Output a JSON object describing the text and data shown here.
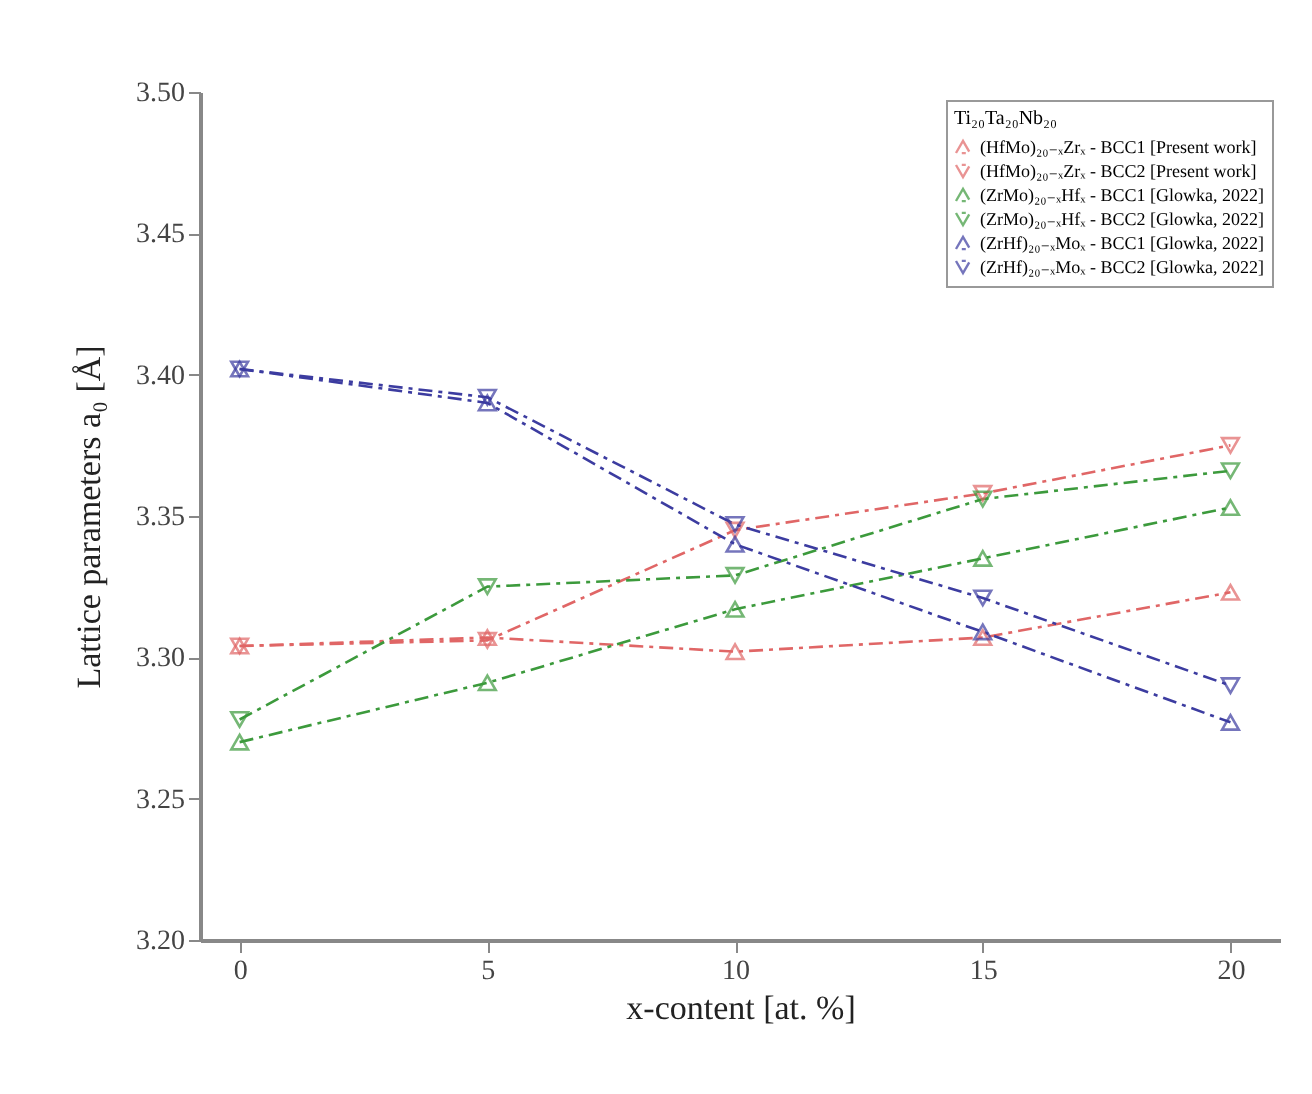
{
  "chart_data": {
    "type": "line",
    "xlabel": "x-content [at. %]",
    "ylabel": "Lattice parameters a₀ [Å]",
    "legend_title": "Ti₂₀Ta₂₀Nb₂₀",
    "x": [
      0,
      5,
      10,
      15,
      20
    ],
    "xlim": [
      -0.8,
      21
    ],
    "xticks": [
      0,
      5,
      10,
      15,
      20
    ],
    "ylim": [
      3.2,
      3.5
    ],
    "yticks": [
      {
        "value": 3.2,
        "label": "3.20"
      },
      3.25,
      {
        "value": 3.3,
        "label": "3.30"
      },
      3.35,
      {
        "value": 3.4,
        "label": "3.40"
      },
      3.45,
      {
        "value": 3.5,
        "label": "3.50"
      }
    ],
    "legend": "top right",
    "grid": false,
    "line_style": "dashed",
    "series": [
      {
        "name": "(HfMo)₂₀₋ₓZrₓ - BCC1 [Present work]",
        "color": "#e06666",
        "marker": "triangle-up",
        "values": [
          3.304,
          3.307,
          3.302,
          3.307,
          3.323
        ]
      },
      {
        "name": "(HfMo)₂₀₋ₓZrₓ - BCC2 [Present work]",
        "color": "#e06666",
        "marker": "triangle-down",
        "values": [
          3.304,
          3.306,
          3.345,
          3.358,
          3.375
        ]
      },
      {
        "name": "(ZrMo)₂₀₋ₓHfₓ - BCC1 [Glowka, 2022]",
        "color": "#3c9a3c",
        "marker": "triangle-up",
        "values": [
          3.27,
          3.291,
          3.317,
          3.335,
          3.353
        ]
      },
      {
        "name": "(ZrMo)₂₀₋ₓHfₓ - BCC2 [Glowka, 2022]",
        "color": "#3c9a3c",
        "marker": "triangle-down",
        "values": [
          3.278,
          3.325,
          3.329,
          3.356,
          3.366
        ]
      },
      {
        "name": "(ZrHf)₂₀₋ₓMoₓ - BCC1 [Glowka, 2022]",
        "color": "#3c3ca0",
        "marker": "triangle-up",
        "values": [
          3.402,
          3.39,
          3.34,
          3.309,
          3.277
        ]
      },
      {
        "name": "(ZrHf)₂₀₋ₓMoₓ - BCC2 [Glowka, 2022]",
        "color": "#3c3ca0",
        "marker": "triangle-down",
        "values": [
          3.402,
          3.392,
          3.347,
          3.321,
          3.29
        ]
      }
    ]
  }
}
